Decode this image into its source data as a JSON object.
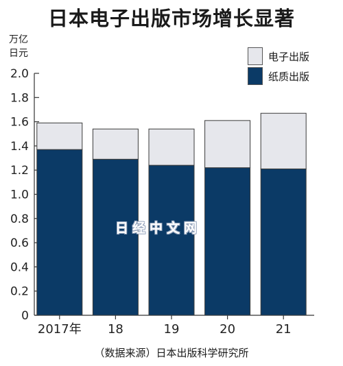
{
  "chart_data": {
    "type": "bar",
    "stacked": true,
    "title": "日本电子出版市场增长显著",
    "unit_label": [
      "万亿",
      "日元"
    ],
    "categories": [
      "2017年",
      "18",
      "19",
      "20",
      "21"
    ],
    "series": [
      {
        "name": "纸质出版",
        "color": "#0b3a66",
        "values": [
          1.37,
          1.29,
          1.24,
          1.22,
          1.21
        ]
      },
      {
        "name": "电子出版",
        "color": "#e6e7ec",
        "values": [
          0.22,
          0.25,
          0.3,
          0.39,
          0.46
        ]
      }
    ],
    "ylim": [
      0,
      2.0
    ],
    "yticks": [
      "0",
      "0.2",
      "0.4",
      "0.6",
      "0.8",
      "1.0",
      "1.2",
      "1.4",
      "1.6",
      "1.8",
      "2.0"
    ],
    "legend_position": "top-right",
    "grid": false,
    "source": "（数据来源）日本出版科学研究所"
  },
  "watermark": "日经中文网"
}
